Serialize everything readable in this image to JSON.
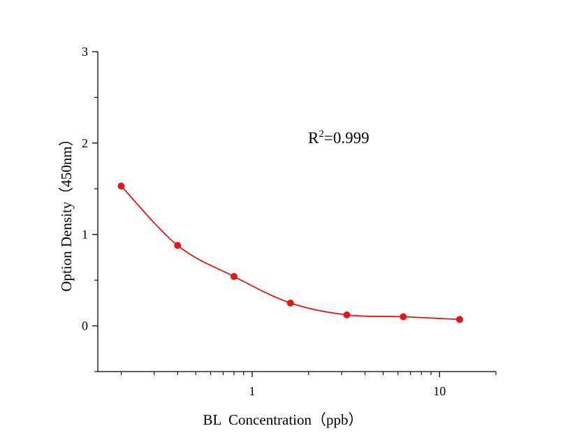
{
  "chart_data": {
    "type": "scatter",
    "title": "",
    "xlabel": "BL  Concentration（ppb）",
    "ylabel": "Option Density（450nm）",
    "x_scale": "log",
    "xlim": [
      0.15,
      20
    ],
    "ylim": [
      -0.5,
      3
    ],
    "x_ticks": [
      {
        "value": 1,
        "label": "1"
      },
      {
        "value": 10,
        "label": "10"
      }
    ],
    "y_ticks": [
      {
        "value": 0,
        "label": "0"
      },
      {
        "value": 1,
        "label": "1"
      },
      {
        "value": 2,
        "label": "2"
      },
      {
        "value": 3,
        "label": "3"
      }
    ],
    "annotation": {
      "base": "R",
      "superscript": "2",
      "rest": "=0.999"
    },
    "grid": false,
    "legend": "none",
    "series": [
      {
        "x": [
          0.2,
          0.4,
          0.8,
          1.6,
          3.2,
          6.4,
          12.8
        ],
        "y": [
          1.53,
          0.88,
          0.54,
          0.25,
          0.12,
          0.1,
          0.07
        ],
        "color": "#e0161b",
        "fit_line": true
      }
    ]
  }
}
